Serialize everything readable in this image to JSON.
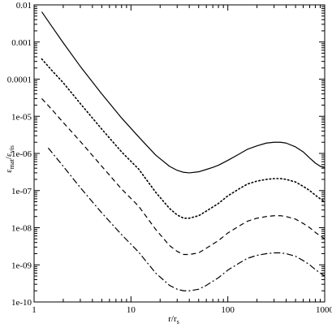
{
  "chart_data": {
    "type": "line",
    "title": "",
    "xlabel": {
      "main": "r/r",
      "sub": "s"
    },
    "ylabel": {
      "eps": "ε",
      "sub1": "mat",
      "sep": "/ε",
      "sub2": "vis"
    },
    "xscale": "log",
    "yscale": "log",
    "xlim": [
      1,
      1000
    ],
    "ylim": [
      1e-10,
      0.01
    ],
    "grid": false,
    "x_tick_labels": [
      "1",
      "10",
      "100",
      "1000"
    ],
    "y_tick_labels": [
      "0.01",
      "0.001",
      "0.0001",
      "1e-05",
      "1e-06",
      "1e-07",
      "1e-08",
      "1e-09",
      "1e-10"
    ],
    "series": [
      {
        "style": "solid",
        "x": [
          1.2,
          1.5,
          2,
          3,
          5,
          8,
          12,
          18,
          25,
          30,
          35,
          40,
          50,
          60,
          70,
          80,
          100,
          130,
          160,
          200,
          250,
          300,
          350,
          400,
          500,
          600,
          700,
          800,
          900,
          1000
        ],
        "y": [
          0.0065,
          0.0028,
          0.00095,
          0.00022,
          4e-05,
          9e-06,
          2.8e-06,
          9e-07,
          4.5e-07,
          3.5e-07,
          3.1e-07,
          3e-07,
          3.2e-07,
          3.7e-07,
          4.2e-07,
          4.8e-07,
          6.5e-07,
          9.5e-07,
          1.3e-06,
          1.6e-06,
          1.9e-06,
          2e-06,
          2e-06,
          1.9e-06,
          1.5e-06,
          1.1e-06,
          7.5e-07,
          5.5e-07,
          4.5e-07,
          4.2e-07
        ]
      },
      {
        "style": "dotted",
        "x": [
          1.2,
          1.5,
          2,
          3,
          5,
          8,
          12,
          18,
          25,
          30,
          35,
          40,
          50,
          60,
          80,
          100,
          130,
          160,
          200,
          250,
          300,
          350,
          400,
          500,
          600,
          700,
          800,
          900,
          1000
        ],
        "y": [
          0.00035,
          0.00018,
          8e-05,
          2.2e-05,
          4.5e-06,
          1.1e-06,
          3.8e-07,
          9e-08,
          3.3e-08,
          2.2e-08,
          1.8e-08,
          1.8e-08,
          2.1e-08,
          2.8e-08,
          4.5e-08,
          7.2e-08,
          1.1e-07,
          1.5e-07,
          1.8e-07,
          2e-07,
          2.1e-07,
          2.1e-07,
          2e-07,
          1.7e-07,
          1.3e-07,
          1e-07,
          7.5e-08,
          6e-08,
          5e-08
        ]
      },
      {
        "style": "dashed",
        "x": [
          1.2,
          1.5,
          2,
          3,
          5,
          8,
          12,
          18,
          25,
          30,
          35,
          40,
          50,
          60,
          80,
          100,
          130,
          160,
          200,
          250,
          300,
          350,
          400,
          500,
          600,
          700,
          800,
          900,
          1000
        ],
        "y": [
          3e-05,
          1.6e-05,
          6.8e-06,
          2.1e-06,
          4.5e-07,
          1.1e-07,
          3.8e-08,
          9e-09,
          3.3e-09,
          2.3e-09,
          1.9e-09,
          1.9e-09,
          2.1e-09,
          2.8e-09,
          4.5e-09,
          7.2e-09,
          1.1e-08,
          1.5e-08,
          1.8e-08,
          2e-08,
          2.1e-08,
          2.1e-08,
          2e-08,
          1.7e-08,
          1.3e-08,
          1e-08,
          7.5e-09,
          6e-09,
          5e-09
        ]
      },
      {
        "style": "dashdot",
        "x": [
          1.4,
          2,
          3,
          5,
          8,
          12,
          18,
          25,
          30,
          35,
          40,
          50,
          60,
          80,
          100,
          130,
          160,
          200,
          250,
          300,
          350,
          400,
          500,
          600,
          700,
          800,
          900,
          1000
        ],
        "y": [
          1.4e-06,
          4.5e-07,
          1.2e-07,
          2.5e-08,
          6.5e-09,
          2.2e-09,
          6e-10,
          2.8e-10,
          2.2e-10,
          2e-10,
          2e-10,
          2.2e-10,
          2.8e-10,
          4.5e-10,
          7.2e-10,
          1.1e-09,
          1.5e-09,
          1.8e-09,
          2e-09,
          2.1e-09,
          2.1e-09,
          2e-09,
          1.7e-09,
          1.3e-09,
          1e-09,
          7.5e-10,
          6e-10,
          5e-10
        ]
      }
    ]
  }
}
